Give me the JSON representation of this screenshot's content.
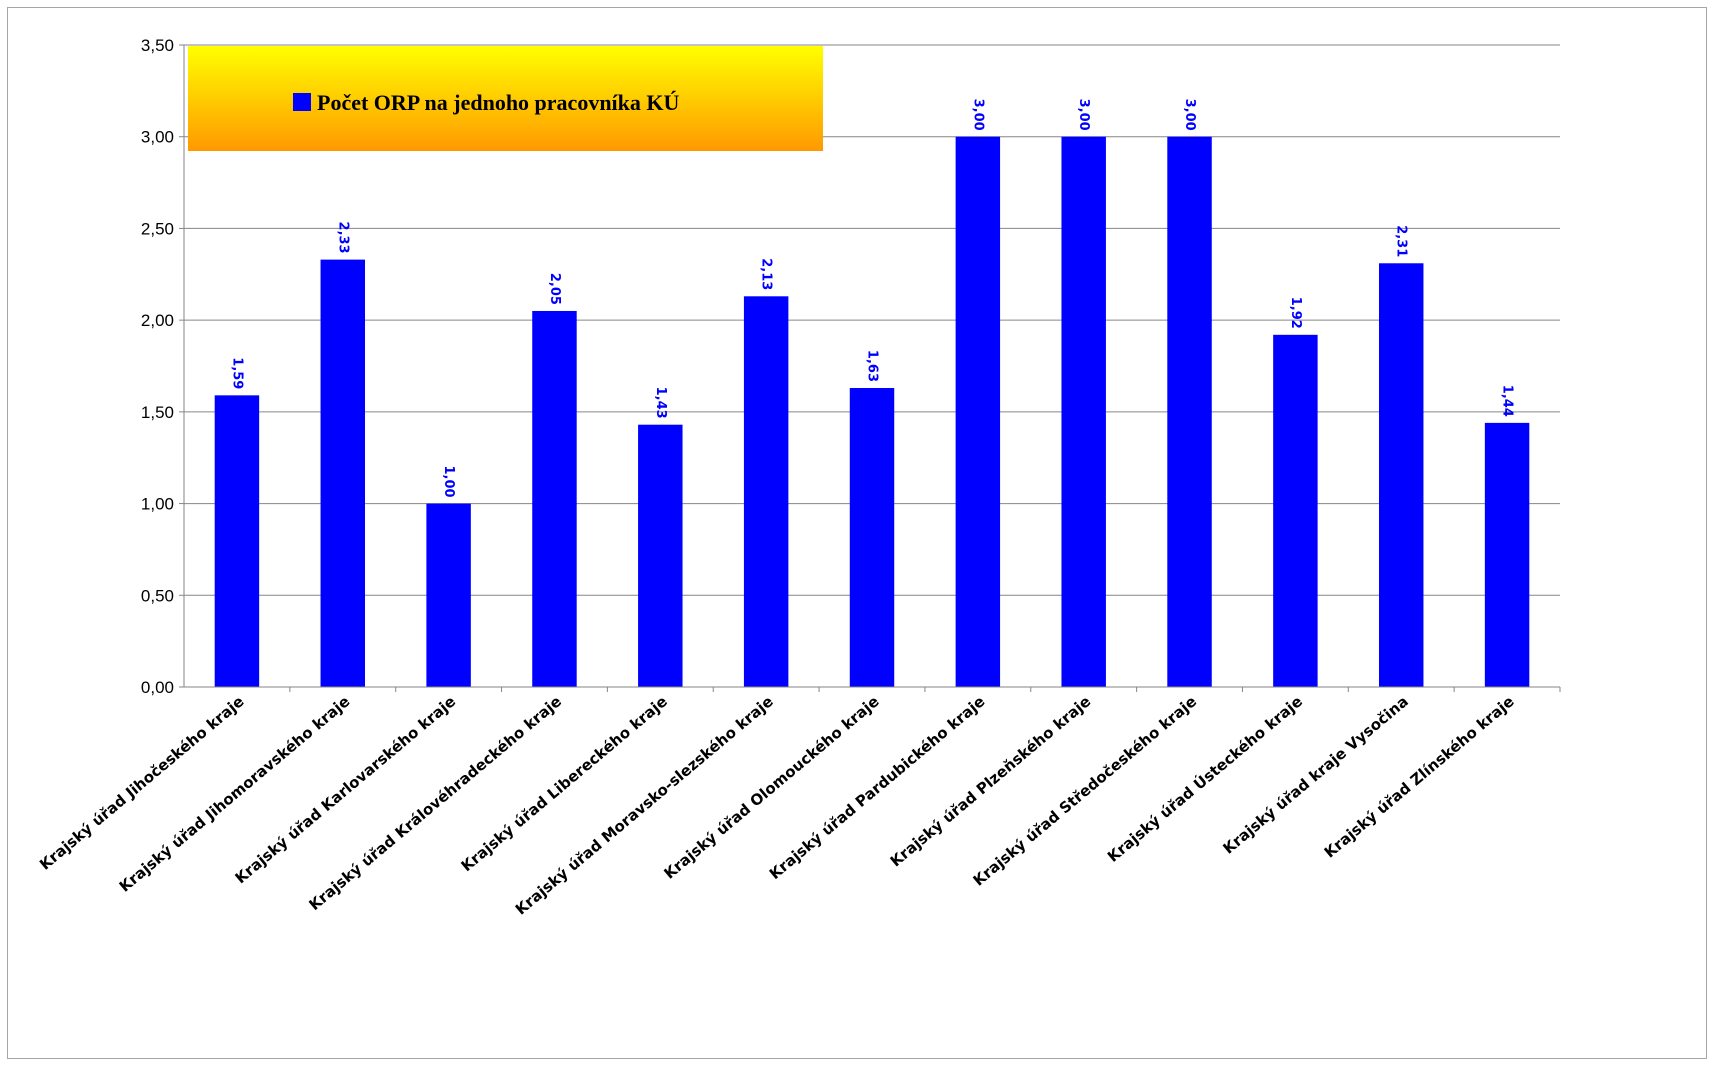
{
  "chart_data": {
    "type": "bar",
    "title": "",
    "xlabel": "",
    "ylabel": "",
    "ylim": [
      0,
      3.5
    ],
    "y_ticks": [
      "0,00",
      "0,50",
      "1,00",
      "1,50",
      "2,00",
      "2,50",
      "3,00",
      "3,50"
    ],
    "grid": true,
    "legend_placement": "top-left",
    "categories": [
      "Krajský úřad Jihočeského kraje",
      "Krajský úřad Jihomoravského kraje",
      "Krajský úřad Karlovarského kraje",
      "Krajský úřad Královéhradeckého kraje",
      "Krajský úřad Libereckého kraje",
      "Krajský úřad Moravsko-slezského kraje",
      "Krajský úřad Olomouckého kraje",
      "Krajský úřad Pardubického kraje",
      "Krajský úřad Plzeňského kraje",
      "Krajský úřad Středočeského kraje",
      "Krajský úřad Ústeckého kraje",
      "Krajský úřad kraje Vysočina",
      "Krajský úřad Zlínského kraje"
    ],
    "series": [
      {
        "name": "Počet ORP na jednoho pracovníka KÚ",
        "color": "#0000ff",
        "values": [
          1.59,
          2.33,
          1.0,
          2.05,
          1.43,
          2.13,
          1.63,
          3.0,
          3.0,
          3.0,
          1.92,
          2.31,
          1.44
        ],
        "labels": [
          "1,59",
          "2,33",
          "1,00",
          "2,05",
          "1,43",
          "2,13",
          "1,63",
          "3,00",
          "3,00",
          "3,00",
          "1,92",
          "2,31",
          "1,44"
        ]
      }
    ],
    "colors": {
      "bar": "#0000ff",
      "data_label": "#0000ff",
      "legend_gradient_top": "#ffff00",
      "legend_gradient_bottom": "#ff9900",
      "gridline": "#868686"
    }
  }
}
